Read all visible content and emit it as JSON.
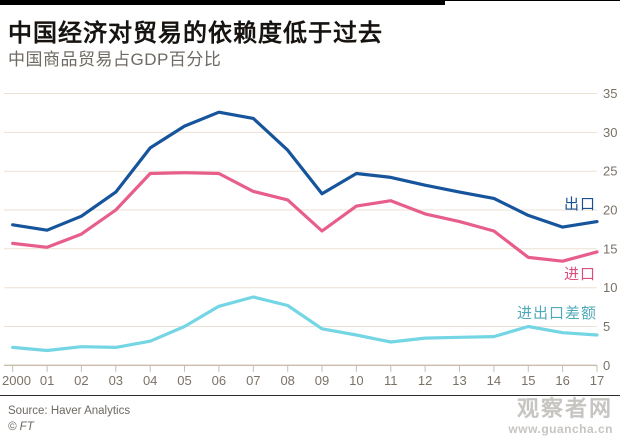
{
  "header": {
    "title": "中国经济对贸易的依赖度低于过去",
    "subtitle": "中国商品贸易占GDP百分比"
  },
  "chart_data": {
    "type": "line",
    "x_labels": [
      "2000",
      "01",
      "02",
      "03",
      "04",
      "05",
      "06",
      "07",
      "08",
      "09",
      "10",
      "11",
      "12",
      "13",
      "14",
      "15",
      "16",
      "17"
    ],
    "series": [
      {
        "name": "出口",
        "color": "#16549c",
        "label_color": "#1a5291",
        "values": [
          18.1,
          17.4,
          19.2,
          22.3,
          28.0,
          30.8,
          32.6,
          31.8,
          27.7,
          22.1,
          24.7,
          24.2,
          23.2,
          22.3,
          21.5,
          19.3,
          17.8,
          18.5
        ]
      },
      {
        "name": "进口",
        "color": "#e75e8c",
        "label_color": "#db4f7e",
        "values": [
          15.7,
          15.2,
          16.9,
          20.0,
          24.7,
          24.8,
          24.7,
          22.4,
          21.3,
          17.3,
          20.5,
          21.2,
          19.5,
          18.5,
          17.3,
          13.9,
          13.4,
          14.6
        ]
      },
      {
        "name": "进出口差额",
        "color": "#74d6e4",
        "label_color": "#4fa9b8",
        "values": [
          2.3,
          1.9,
          2.4,
          2.3,
          3.1,
          5.0,
          7.6,
          8.8,
          7.7,
          4.7,
          3.9,
          3.0,
          3.5,
          3.6,
          3.7,
          5.0,
          4.2,
          3.9
        ]
      }
    ],
    "yticks": [
      0,
      5,
      10,
      15,
      20,
      25,
      30,
      35
    ],
    "ylim": [
      0,
      35
    ],
    "grid": true,
    "yaxis_side": "right",
    "legend_position": "direct-labels-right",
    "colors": {
      "grid": "#ede1d4",
      "axis": "#c9bcae",
      "tick_text": "#7b7267"
    }
  },
  "footer": {
    "source": "Source: Haver Analytics",
    "copyright": "© FT"
  },
  "watermark": {
    "site": "观察者网",
    "url": "www.guancha.cn"
  }
}
